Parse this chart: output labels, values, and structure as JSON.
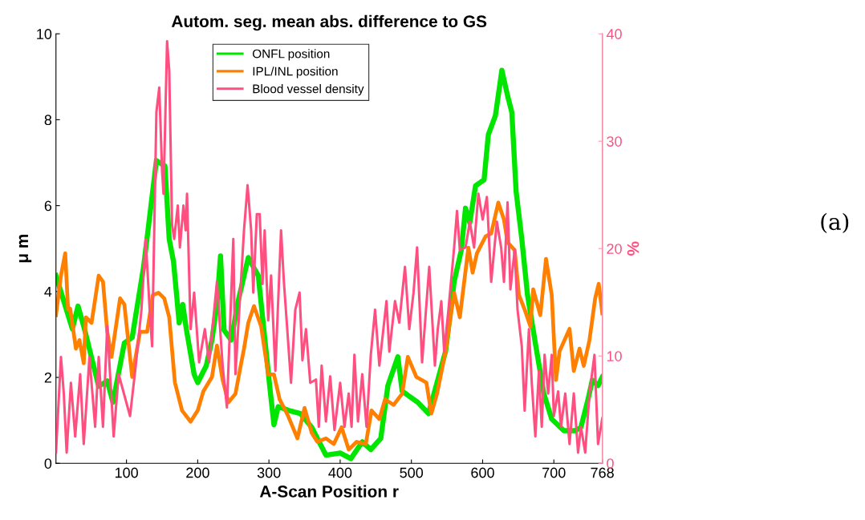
{
  "chart_data": {
    "type": "line",
    "title": "Autom. seg. mean abs. difference to GS",
    "xlabel": "A-Scan Position r",
    "ylabel": "μ m",
    "y2label": "%",
    "xlim": [
      1,
      768
    ],
    "xticks": [
      100,
      200,
      300,
      400,
      500,
      600,
      700,
      768
    ],
    "ylim": [
      0,
      10
    ],
    "yticks": [
      0,
      2,
      4,
      6,
      8,
      10
    ],
    "y2lim": [
      0,
      40
    ],
    "y2ticks": [
      0,
      10,
      20,
      30,
      40
    ],
    "grid": false,
    "legend": "top",
    "line_style": "solid",
    "marker": "none",
    "annotations": [
      "(a)"
    ],
    "series": [
      {
        "name": "ONFL position",
        "color": "#00e600",
        "x": [
          1,
          24,
          32,
          41,
          61,
          73,
          81,
          97,
          108,
          124,
          142,
          154,
          160,
          166,
          174,
          179,
          184,
          195,
          200,
          212,
          220,
          227,
          232,
          237,
          247,
          257,
          271,
          285,
          301,
          307,
          313,
          328,
          344,
          360,
          380,
          400,
          415,
          431,
          443,
          457,
          467,
          481,
          487,
          503,
          509,
          524,
          537,
          548,
          560,
          570,
          576,
          582,
          590,
          602,
          608,
          618,
          627,
          635,
          641,
          647,
          655,
          663,
          674,
          686,
          697,
          714,
          730,
          738,
          748,
          754,
          762,
          768
        ],
        "values": [
          4.37,
          3.13,
          3.66,
          3.13,
          1.79,
          1.92,
          1.42,
          2.8,
          2.93,
          4.57,
          7.05,
          6.92,
          5.22,
          4.7,
          3.27,
          3.7,
          3.13,
          2.07,
          1.88,
          2.27,
          2.87,
          3.7,
          4.83,
          3.1,
          2.87,
          3.79,
          4.79,
          4.37,
          1.81,
          0.9,
          1.32,
          1.23,
          1.16,
          0.84,
          0.19,
          0.24,
          0.11,
          0.5,
          0.32,
          0.58,
          1.81,
          2.48,
          1.68,
          1.49,
          1.42,
          1.16,
          1.94,
          2.61,
          4.23,
          4.96,
          5.94,
          5.6,
          6.46,
          6.6,
          7.65,
          8.1,
          9.15,
          8.56,
          8.17,
          6.33,
          5.22,
          3.92,
          2.8,
          1.62,
          1.03,
          0.76,
          0.76,
          0.84,
          1.49,
          1.94,
          1.81,
          2.01
        ]
      },
      {
        "name": "IPL/INL position",
        "color": "#ff8000",
        "x": [
          1,
          8,
          14,
          18,
          21,
          29,
          34,
          40,
          43,
          51,
          61,
          67,
          73,
          79,
          91,
          97,
          108,
          119,
          129,
          137,
          145,
          153,
          160,
          168,
          178,
          190,
          200,
          208,
          220,
          227,
          235,
          243,
          253,
          261,
          265,
          271,
          279,
          289,
          299,
          307,
          315,
          327,
          340,
          350,
          360,
          368,
          380,
          391,
          402,
          412,
          423,
          436,
          444,
          455,
          463,
          475,
          487,
          495,
          507,
          521,
          528,
          536,
          548,
          560,
          568,
          580,
          586,
          592,
          604,
          612,
          622,
          630,
          635,
          645,
          651,
          659,
          667,
          671,
          681,
          689,
          697,
          703,
          708,
          722,
          728,
          736,
          742,
          750,
          758,
          763,
          768
        ],
        "values": [
          3.45,
          4.37,
          4.89,
          3.58,
          3.6,
          2.67,
          2.87,
          2.33,
          3.4,
          3.27,
          4.37,
          4.23,
          3.06,
          2.48,
          3.84,
          3.7,
          2.01,
          3.06,
          3.06,
          3.92,
          3.97,
          3.84,
          3.4,
          1.88,
          1.23,
          0.97,
          1.23,
          1.68,
          2.01,
          2.74,
          1.94,
          1.42,
          1.62,
          2.33,
          2.67,
          3.27,
          3.66,
          3.19,
          2.07,
          2.07,
          1.49,
          1.1,
          0.58,
          1.29,
          0.71,
          0.5,
          0.58,
          0.45,
          0.84,
          0.32,
          0.5,
          0.45,
          1.23,
          1.03,
          1.49,
          1.36,
          1.62,
          2.48,
          2.01,
          1.88,
          1.16,
          1.62,
          2.61,
          3.97,
          3.4,
          5.02,
          4.44,
          4.89,
          5.28,
          5.35,
          6.07,
          5.67,
          5.15,
          4.96,
          3.92,
          3.58,
          3.19,
          4.05,
          3.45,
          4.76,
          3.92,
          1.94,
          2.61,
          3.13,
          2.15,
          2.67,
          2.27,
          2.87,
          3.84,
          4.18,
          3.49
        ]
      },
      {
        "name": "Blood vessel density",
        "color": "#ff4f80",
        "axis": "y2",
        "x": [
          1,
          8,
          12,
          16,
          22,
          28,
          35,
          40,
          48,
          56,
          61,
          67,
          73,
          82,
          89,
          105,
          113,
          121,
          127,
          133,
          136,
          142,
          146,
          150,
          152,
          157,
          160,
          164,
          167,
          172,
          175,
          180,
          183,
          185,
          190,
          195,
          202,
          210,
          216,
          227,
          235,
          241,
          250,
          253,
          265,
          270,
          275,
          278,
          283,
          287,
          291,
          294,
          299,
          303,
          309,
          317,
          321,
          331,
          337,
          343,
          347,
          352,
          358,
          366,
          370,
          374,
          380,
          386,
          392,
          400,
          406,
          412,
          416,
          420,
          425,
          431,
          437,
          443,
          449,
          455,
          465,
          469,
          477,
          483,
          491,
          497,
          503,
          508,
          515,
          525,
          533,
          537,
          542,
          546,
          552,
          560,
          564,
          568,
          576,
          582,
          588,
          594,
          600,
          606,
          612,
          620,
          626,
          630,
          635,
          639,
          645,
          649,
          655,
          659,
          665,
          669,
          674,
          679,
          683,
          687,
          692,
          697,
          700,
          706,
          710,
          716,
          722,
          728,
          734,
          738,
          744,
          750,
          757,
          762,
          768
        ],
        "values": [
          1.0,
          9.9,
          6.5,
          1.0,
          7.5,
          2.5,
          8.3,
          1.8,
          9.9,
          3.4,
          9.9,
          3.4,
          12.8,
          2.5,
          8.3,
          4.4,
          9.1,
          14.3,
          20.9,
          13.8,
          10.9,
          32.7,
          35.0,
          27.2,
          25.1,
          39.3,
          36.6,
          22.2,
          20.9,
          24.0,
          20.1,
          24.0,
          21.7,
          25.1,
          12.5,
          15.9,
          9.4,
          12.5,
          9.4,
          16.9,
          9.1,
          5.2,
          20.9,
          8.3,
          21.7,
          25.9,
          21.7,
          15.9,
          23.2,
          23.2,
          16.7,
          21.7,
          13.3,
          17.5,
          8.6,
          21.7,
          16.9,
          7.5,
          14.3,
          15.9,
          9.6,
          12.5,
          7.5,
          7.8,
          3.4,
          9.1,
          3.9,
          8.1,
          3.1,
          7.5,
          3.4,
          6.5,
          3.4,
          10.1,
          3.9,
          8.3,
          3.4,
          10.1,
          14.3,
          9.1,
          15.1,
          10.4,
          15.1,
          13.1,
          18.3,
          12.5,
          15.9,
          20.1,
          9.4,
          18.3,
          9.1,
          12.5,
          15.1,
          10.4,
          14.3,
          20.1,
          23.5,
          19.9,
          20.1,
          22.5,
          20.1,
          25.1,
          22.7,
          24.8,
          16.9,
          22.5,
          20.1,
          16.9,
          24.3,
          16.2,
          19.9,
          14.3,
          10.9,
          4.9,
          12.5,
          7.5,
          2.5,
          8.6,
          3.4,
          10.1,
          6.5,
          10.1,
          4.4,
          6.7,
          3.4,
          6.5,
          1.8,
          6.5,
          1.0,
          3.4,
          1.0,
          6.5,
          10.1,
          1.8,
          4.2
        ]
      }
    ]
  }
}
